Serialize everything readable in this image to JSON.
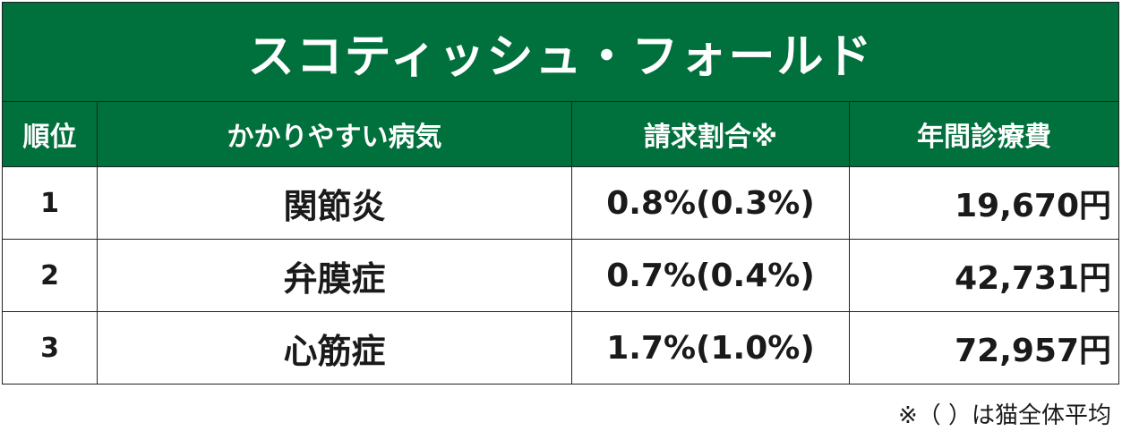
{
  "title": "スコティッシュ・フォールド",
  "headers": {
    "rank": "順位",
    "disease": "かかりやすい病気",
    "claim_ratio": "請求割合※",
    "annual_cost": "年間診療費"
  },
  "rows": [
    {
      "rank": "1",
      "disease": "関節炎",
      "claim_ratio": "0.8%(0.3%)",
      "annual_cost": "19,670円"
    },
    {
      "rank": "2",
      "disease": "弁膜症",
      "claim_ratio": "0.7%(0.4%)",
      "annual_cost": "42,731円"
    },
    {
      "rank": "3",
      "disease": "心筋症",
      "claim_ratio": "1.7%(1.0%)",
      "annual_cost": "72,957円"
    }
  ],
  "footnote": "※（ ）は猫全体平均",
  "colors": {
    "header_bg": "#00703c",
    "header_text": "#ffffff"
  }
}
